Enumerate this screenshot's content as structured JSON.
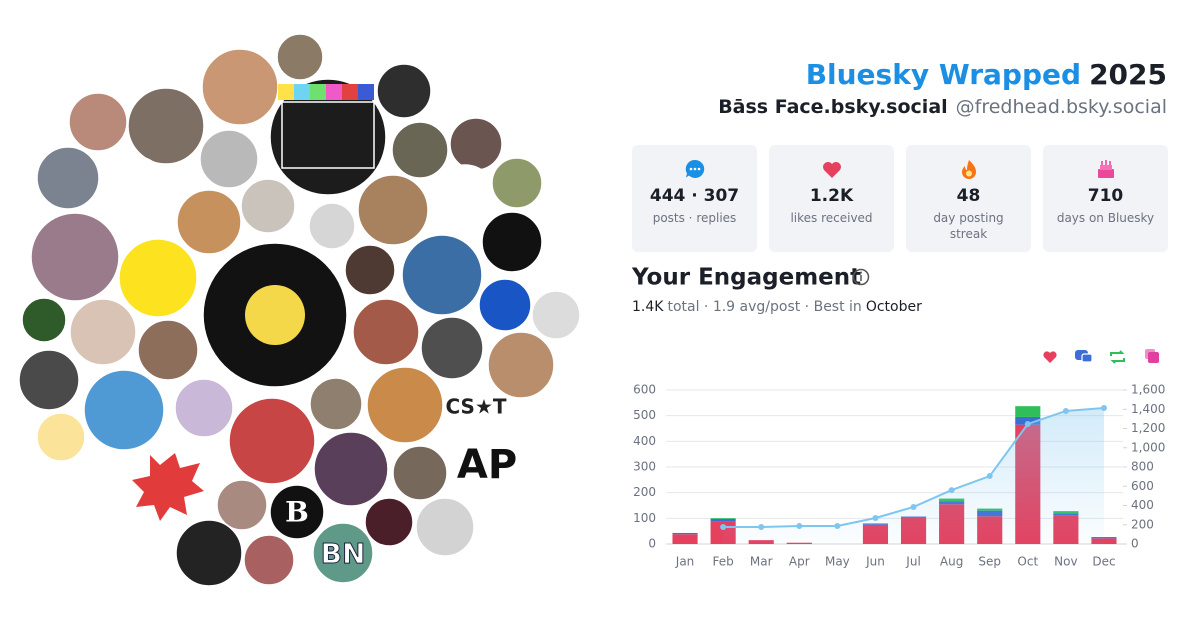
{
  "header": {
    "title": "Bluesky Wrapped",
    "year": "2025",
    "display_name": "Bāss Face.bsky.social",
    "handle": "@fredhead.bsky.social"
  },
  "stats": [
    {
      "value": "444 · 307",
      "label": "posts · replies"
    },
    {
      "value": "1.2K",
      "label": "likes received"
    },
    {
      "value": 48,
      "label": "day posting streak"
    },
    {
      "value": 710,
      "label": "days on Bluesky"
    }
  ],
  "engagement": {
    "title": "Your Engagement",
    "total": "1.4K",
    "summary": "total · 1.9 avg/post · Best in",
    "best_month": "October"
  },
  "avatar_labels": [
    "CS★T",
    "AP",
    "B",
    "BN"
  ],
  "chart_data": {
    "type": "bar",
    "stacked": true,
    "grid": true,
    "categories": [
      "Jan",
      "Feb",
      "Mar",
      "Apr",
      "May",
      "Jun",
      "Jul",
      "Aug",
      "Sep",
      "Oct",
      "Nov",
      "Dec"
    ],
    "series": [
      {
        "color": "#e5405e",
        "values": [
          38,
          88,
          15,
          5,
          0,
          75,
          103,
          155,
          108,
          465,
          110,
          22
        ]
      },
      {
        "color": "#3b6fd6",
        "values": [
          5,
          10,
          0,
          0,
          0,
          5,
          4,
          12,
          22,
          30,
          10,
          5
        ]
      },
      {
        "color": "#2fbf5a",
        "values": [
          0,
          3,
          0,
          0,
          0,
          0,
          0,
          10,
          8,
          42,
          8,
          0
        ]
      },
      {
        "color": "#e040a0",
        "values": [
          0,
          0,
          0,
          0,
          0,
          0,
          0,
          0,
          0,
          0,
          0,
          0
        ]
      },
      {
        "type": "line",
        "axis": "y2",
        "color": "#7fc6ef",
        "values": [
          null,
          177,
          177,
          187,
          187,
          270,
          385,
          560,
          706,
          1247,
          1382,
          1413
        ]
      }
    ],
    "ylim": [
      0,
      600
    ],
    "yticks": [
      0,
      100,
      200,
      300,
      400,
      500,
      600
    ],
    "y2lim": [
      0,
      1600
    ],
    "y2ticks": [
      0,
      200,
      400,
      600,
      800,
      {
        "value": 1000,
        "label": "1,000"
      },
      {
        "value": 1200,
        "label": "1,200"
      },
      {
        "value": 1400,
        "label": "1,400"
      },
      {
        "value": 1600,
        "label": "1,600"
      }
    ]
  }
}
